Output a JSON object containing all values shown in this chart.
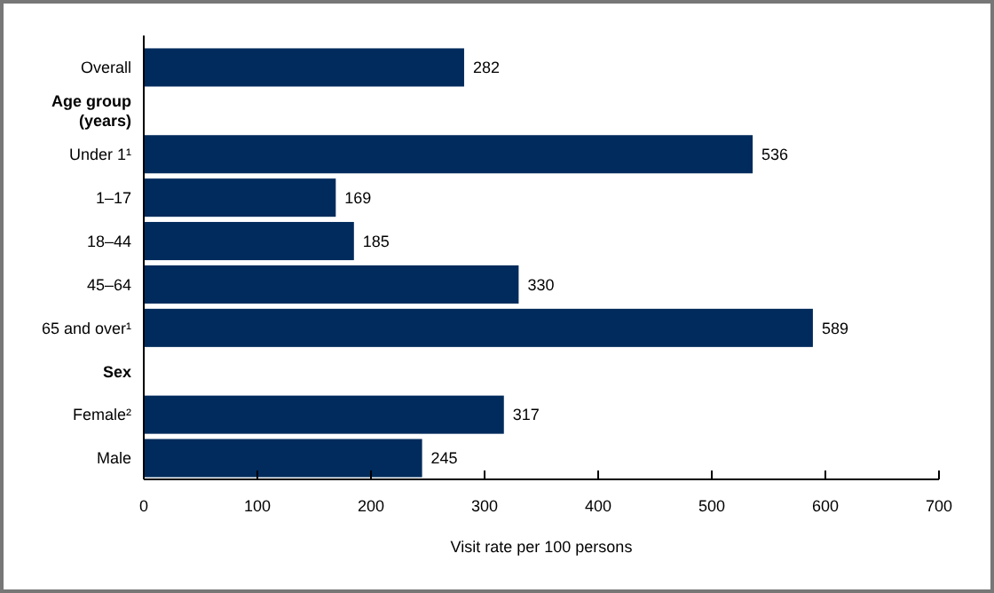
{
  "chart_data": {
    "type": "bar",
    "orientation": "horizontal",
    "xlabel": "Visit rate per 100 persons",
    "categories": [
      "Overall",
      "Age group (years)",
      "Under 1¹",
      "1–17",
      "18–44",
      "45–64",
      "65 and over¹",
      "Sex",
      "Female²",
      "Male"
    ],
    "values": [
      282,
      null,
      536,
      169,
      185,
      330,
      589,
      null,
      317,
      245
    ],
    "color": "#002b5c",
    "xlim": [
      0,
      700
    ],
    "xticks": [
      0,
      100,
      200,
      300,
      400,
      500,
      600,
      700
    ],
    "data_labels": true
  }
}
